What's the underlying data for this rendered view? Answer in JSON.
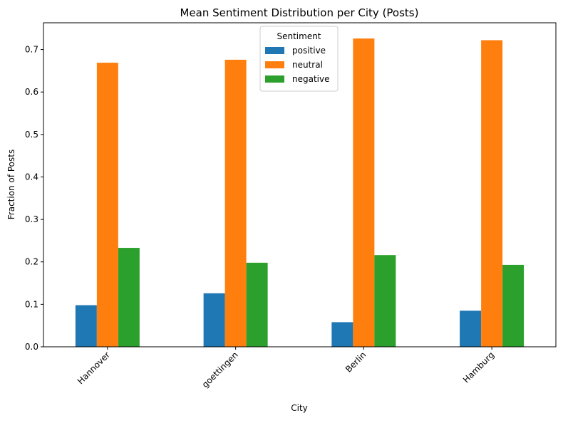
{
  "chart_data": {
    "type": "bar",
    "title": "Mean Sentiment Distribution per City (Posts)",
    "xlabel": "City",
    "ylabel": "Fraction of Posts",
    "categories": [
      "Hannover",
      "goettingen",
      "Berlin",
      "Hamburg"
    ],
    "series": [
      {
        "name": "positive",
        "color": "#1f77b4",
        "values": [
          0.098,
          0.126,
          0.058,
          0.085
        ]
      },
      {
        "name": "neutral",
        "color": "#ff7f0e",
        "values": [
          0.669,
          0.676,
          0.726,
          0.722
        ]
      },
      {
        "name": "negative",
        "color": "#2ca02c",
        "values": [
          0.233,
          0.198,
          0.216,
          0.193
        ]
      }
    ],
    "ylim": [
      0,
      0.763
    ],
    "yticks": [
      0.0,
      0.1,
      0.2,
      0.3,
      0.4,
      0.5,
      0.6,
      0.7
    ],
    "ytick_labels": [
      "0.0",
      "0.1",
      "0.2",
      "0.3",
      "0.4",
      "0.5",
      "0.6",
      "0.7"
    ],
    "grid": false,
    "legend": {
      "title": "Sentiment",
      "position": "upper-center"
    }
  }
}
